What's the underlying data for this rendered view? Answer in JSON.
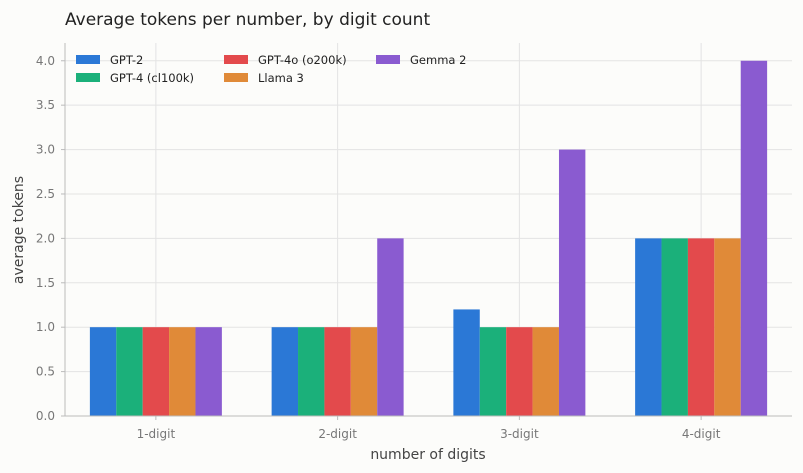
{
  "chart_data": {
    "type": "bar",
    "title": "Average tokens per number, by digit count",
    "xlabel": "number of digits",
    "ylabel": "average tokens",
    "categories": [
      "1-digit",
      "2-digit",
      "3-digit",
      "4-digit"
    ],
    "ylim": [
      0,
      4.2
    ],
    "yticks": [
      "0.0",
      "0.5",
      "1.0",
      "1.5",
      "2.0",
      "2.5",
      "3.0",
      "3.5",
      "4.0"
    ],
    "grid": true,
    "legend_position": "top-left",
    "series": [
      {
        "name": "GPT-2",
        "color": "#2b78d6",
        "values": [
          1.0,
          1.0,
          1.2,
          2.0
        ]
      },
      {
        "name": "GPT-4 (cl100k)",
        "color": "#1bb07a",
        "values": [
          1.0,
          1.0,
          1.0,
          2.0
        ]
      },
      {
        "name": "GPT-4o (o200k)",
        "color": "#e34a4c",
        "values": [
          1.0,
          1.0,
          1.0,
          2.0
        ]
      },
      {
        "name": "Llama 3",
        "color": "#e08a38",
        "values": [
          1.0,
          1.0,
          1.0,
          2.0
        ]
      },
      {
        "name": "Gemma 2",
        "color": "#8a5bd0",
        "values": [
          1.0,
          2.0,
          3.0,
          4.0
        ]
      }
    ]
  }
}
